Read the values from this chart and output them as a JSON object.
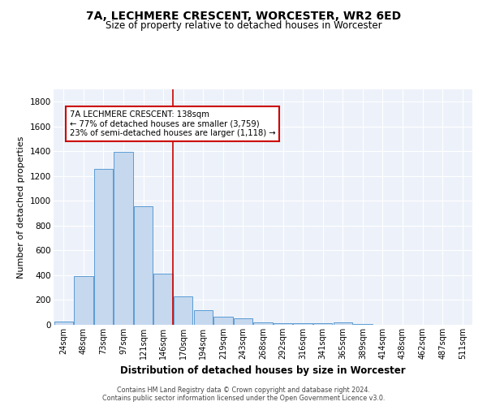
{
  "title1": "7A, LECHMERE CRESCENT, WORCESTER, WR2 6ED",
  "title2": "Size of property relative to detached houses in Worcester",
  "xlabel": "Distribution of detached houses by size in Worcester",
  "ylabel": "Number of detached properties",
  "categories": [
    "24sqm",
    "48sqm",
    "73sqm",
    "97sqm",
    "121sqm",
    "146sqm",
    "170sqm",
    "194sqm",
    "219sqm",
    "243sqm",
    "268sqm",
    "292sqm",
    "316sqm",
    "341sqm",
    "365sqm",
    "389sqm",
    "414sqm",
    "438sqm",
    "462sqm",
    "487sqm",
    "511sqm"
  ],
  "values": [
    25,
    390,
    1260,
    1395,
    955,
    410,
    230,
    115,
    65,
    50,
    20,
    10,
    10,
    10,
    20,
    5,
    0,
    0,
    0,
    0,
    0
  ],
  "bar_color": "#c5d8ee",
  "bar_edge_color": "#5b9bd5",
  "vline_x": 5.5,
  "vline_color": "#cc0000",
  "annotation_text": "7A LECHMERE CRESCENT: 138sqm\n← 77% of detached houses are smaller (3,759)\n23% of semi-detached houses are larger (1,118) →",
  "annotation_box_color": "#ffffff",
  "annotation_box_edge": "#cc0000",
  "ylim": [
    0,
    1900
  ],
  "yticks": [
    0,
    200,
    400,
    600,
    800,
    1000,
    1200,
    1400,
    1600,
    1800
  ],
  "bg_color": "#edf2fa",
  "grid_color": "#ffffff",
  "footer1": "Contains HM Land Registry data © Crown copyright and database right 2024.",
  "footer2": "Contains public sector information licensed under the Open Government Licence v3.0."
}
